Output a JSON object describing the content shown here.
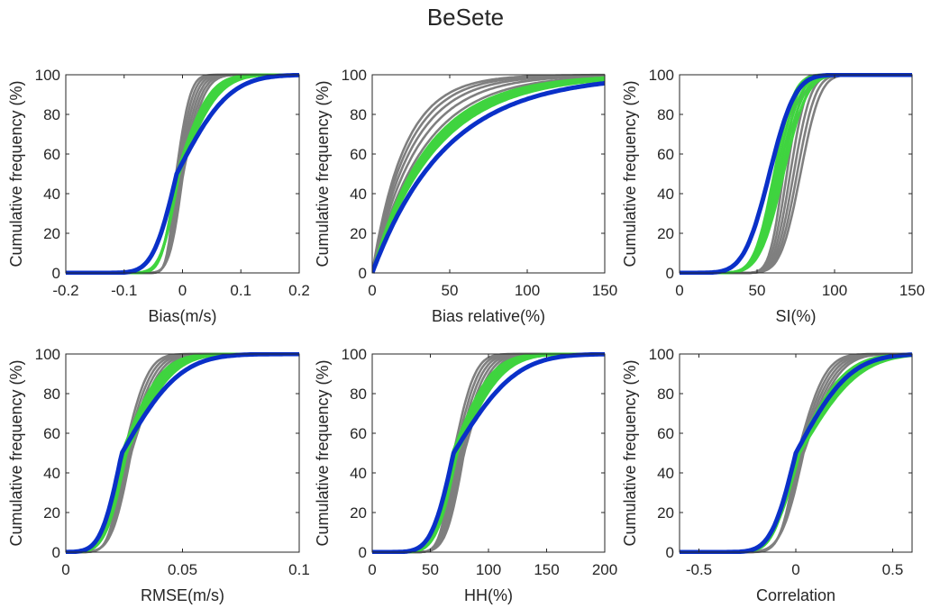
{
  "figure": {
    "title": "BeSete"
  },
  "colors": {
    "gray": "#7f7f7f",
    "green": "#3fd43f",
    "blue": "#0a30c8",
    "axis": "#262626"
  },
  "chart_data": [
    {
      "id": "bias",
      "type": "line",
      "title": "",
      "xlabel": "Bias(m/s)",
      "ylabel": "Cumulative frequency (%)",
      "xlim": [
        -0.2,
        0.2
      ],
      "ylim": [
        0,
        100
      ],
      "xticks": [
        -0.2,
        -0.1,
        0,
        0.1,
        0.2
      ],
      "xticklabels": [
        "-0.2",
        "-0.1",
        "0",
        "0.1",
        "0.2"
      ],
      "yticks": [
        0,
        20,
        40,
        60,
        80,
        100
      ],
      "series": [
        {
          "color": "gray",
          "count": 6,
          "median": -0.005,
          "spread": [
            0.012,
            0.018
          ],
          "shift": [
            -0.006,
            0.006
          ],
          "skew": 1
        },
        {
          "color": "green",
          "count": 5,
          "median": -0.008,
          "spread": [
            0.02,
            0.024
          ],
          "shift": [
            -0.002,
            0.002
          ],
          "skew": 2
        },
        {
          "color": "blue",
          "count": 1,
          "median": -0.01,
          "spread": [
            0.032,
            0.032
          ],
          "shift": [
            0,
            0
          ],
          "skew": 2
        }
      ]
    },
    {
      "id": "bias_relative",
      "type": "line",
      "title": "",
      "xlabel": "Bias relative(%)",
      "ylabel": "Cumulative frequency (%)",
      "xlim": [
        0,
        150
      ],
      "ylim": [
        0,
        100
      ],
      "xticks": [
        0,
        50,
        100,
        150
      ],
      "xticklabels": [
        "0",
        "50",
        "100",
        "150"
      ],
      "yticks": [
        0,
        20,
        40,
        60,
        80,
        100
      ],
      "series": [
        {
          "color": "gray",
          "count": 5,
          "rate": [
            0.03,
            0.048
          ],
          "power": 1.0
        },
        {
          "color": "green",
          "count": 5,
          "rate": [
            0.024,
            0.028
          ],
          "power": 1.0
        },
        {
          "color": "blue",
          "count": 1,
          "rate": [
            0.021,
            0.021
          ],
          "power": 1.0
        }
      ]
    },
    {
      "id": "si",
      "type": "line",
      "title": "",
      "xlabel": "SI(%)",
      "ylabel": "Cumulative frequency (%)",
      "xlim": [
        0,
        150
      ],
      "ylim": [
        0,
        100
      ],
      "xticks": [
        0,
        50,
        100,
        150
      ],
      "xticklabels": [
        "0",
        "50",
        "100",
        "150"
      ],
      "yticks": [
        0,
        20,
        40,
        60,
        80,
        100
      ],
      "series": [
        {
          "color": "gray",
          "count": 6,
          "median": 72,
          "spread": [
            7,
            10
          ],
          "shift": [
            -5,
            6
          ],
          "skew": 0
        },
        {
          "color": "green",
          "count": 5,
          "median": 64,
          "spread": [
            10,
            12
          ],
          "shift": [
            -3,
            3
          ],
          "skew": 0
        },
        {
          "color": "blue",
          "count": 1,
          "median": 58,
          "spread": [
            13,
            13
          ],
          "shift": [
            0,
            0
          ],
          "skew": 0
        }
      ]
    },
    {
      "id": "rmse",
      "type": "line",
      "title": "",
      "xlabel": "RMSE(m/s)",
      "ylabel": "Cumulative frequency (%)",
      "xlim": [
        0,
        0.1
      ],
      "ylim": [
        0,
        100
      ],
      "xticks": [
        0,
        0.05,
        0.1
      ],
      "xticklabels": [
        "0",
        "0.05",
        "0.1"
      ],
      "yticks": [
        0,
        20,
        40,
        60,
        80,
        100
      ],
      "series": [
        {
          "color": "gray",
          "count": 5,
          "median": 0.026,
          "spread": [
            0.005,
            0.0065
          ],
          "shift": [
            -0.001,
            0.002
          ],
          "skew": 1
        },
        {
          "color": "green",
          "count": 5,
          "median": 0.025,
          "spread": [
            0.006,
            0.007
          ],
          "shift": [
            -0.001,
            0.001
          ],
          "skew": 2
        },
        {
          "color": "blue",
          "count": 1,
          "median": 0.024,
          "spread": [
            0.007,
            0.007
          ],
          "shift": [
            0,
            0
          ],
          "skew": 3
        }
      ]
    },
    {
      "id": "hh",
      "type": "line",
      "title": "",
      "xlabel": "HH(%)",
      "ylabel": "Cumulative frequency (%)",
      "xlim": [
        0,
        200
      ],
      "ylim": [
        0,
        100
      ],
      "xticks": [
        0,
        50,
        100,
        150,
        200
      ],
      "xticklabels": [
        "0",
        "50",
        "100",
        "150",
        "200"
      ],
      "yticks": [
        0,
        20,
        40,
        60,
        80,
        100
      ],
      "series": [
        {
          "color": "gray",
          "count": 6,
          "median": 74,
          "spread": [
            9,
            12
          ],
          "shift": [
            -4,
            5
          ],
          "skew": 1
        },
        {
          "color": "green",
          "count": 5,
          "median": 71,
          "spread": [
            12,
            14
          ],
          "shift": [
            -2,
            2
          ],
          "skew": 2
        },
        {
          "color": "blue",
          "count": 1,
          "median": 70,
          "spread": [
            15,
            15
          ],
          "shift": [
            0,
            0
          ],
          "skew": 3
        }
      ]
    },
    {
      "id": "correlation",
      "type": "line",
      "title": "",
      "xlabel": "Correlation",
      "ylabel": "Cumulative frequency (%)",
      "xlim": [
        -0.6,
        0.6
      ],
      "ylim": [
        0,
        100
      ],
      "xticks": [
        -0.5,
        0,
        0.5
      ],
      "xticklabels": [
        "-0.5",
        "0",
        "0.5"
      ],
      "yticks": [
        0,
        20,
        40,
        60,
        80,
        100
      ],
      "series": [
        {
          "color": "gray",
          "count": 5,
          "median": 0.02,
          "spread": [
            0.07,
            0.09
          ],
          "shift": [
            -0.01,
            0.02
          ],
          "skew": 1
        },
        {
          "color": "green",
          "count": 5,
          "median": 0.01,
          "spread": [
            0.09,
            0.11
          ],
          "shift": [
            -0.01,
            0.01
          ],
          "skew": 2
        },
        {
          "color": "blue",
          "count": 1,
          "median": 0.0,
          "spread": [
            0.1,
            0.1
          ],
          "shift": [
            0,
            0
          ],
          "skew": 2
        }
      ]
    }
  ]
}
